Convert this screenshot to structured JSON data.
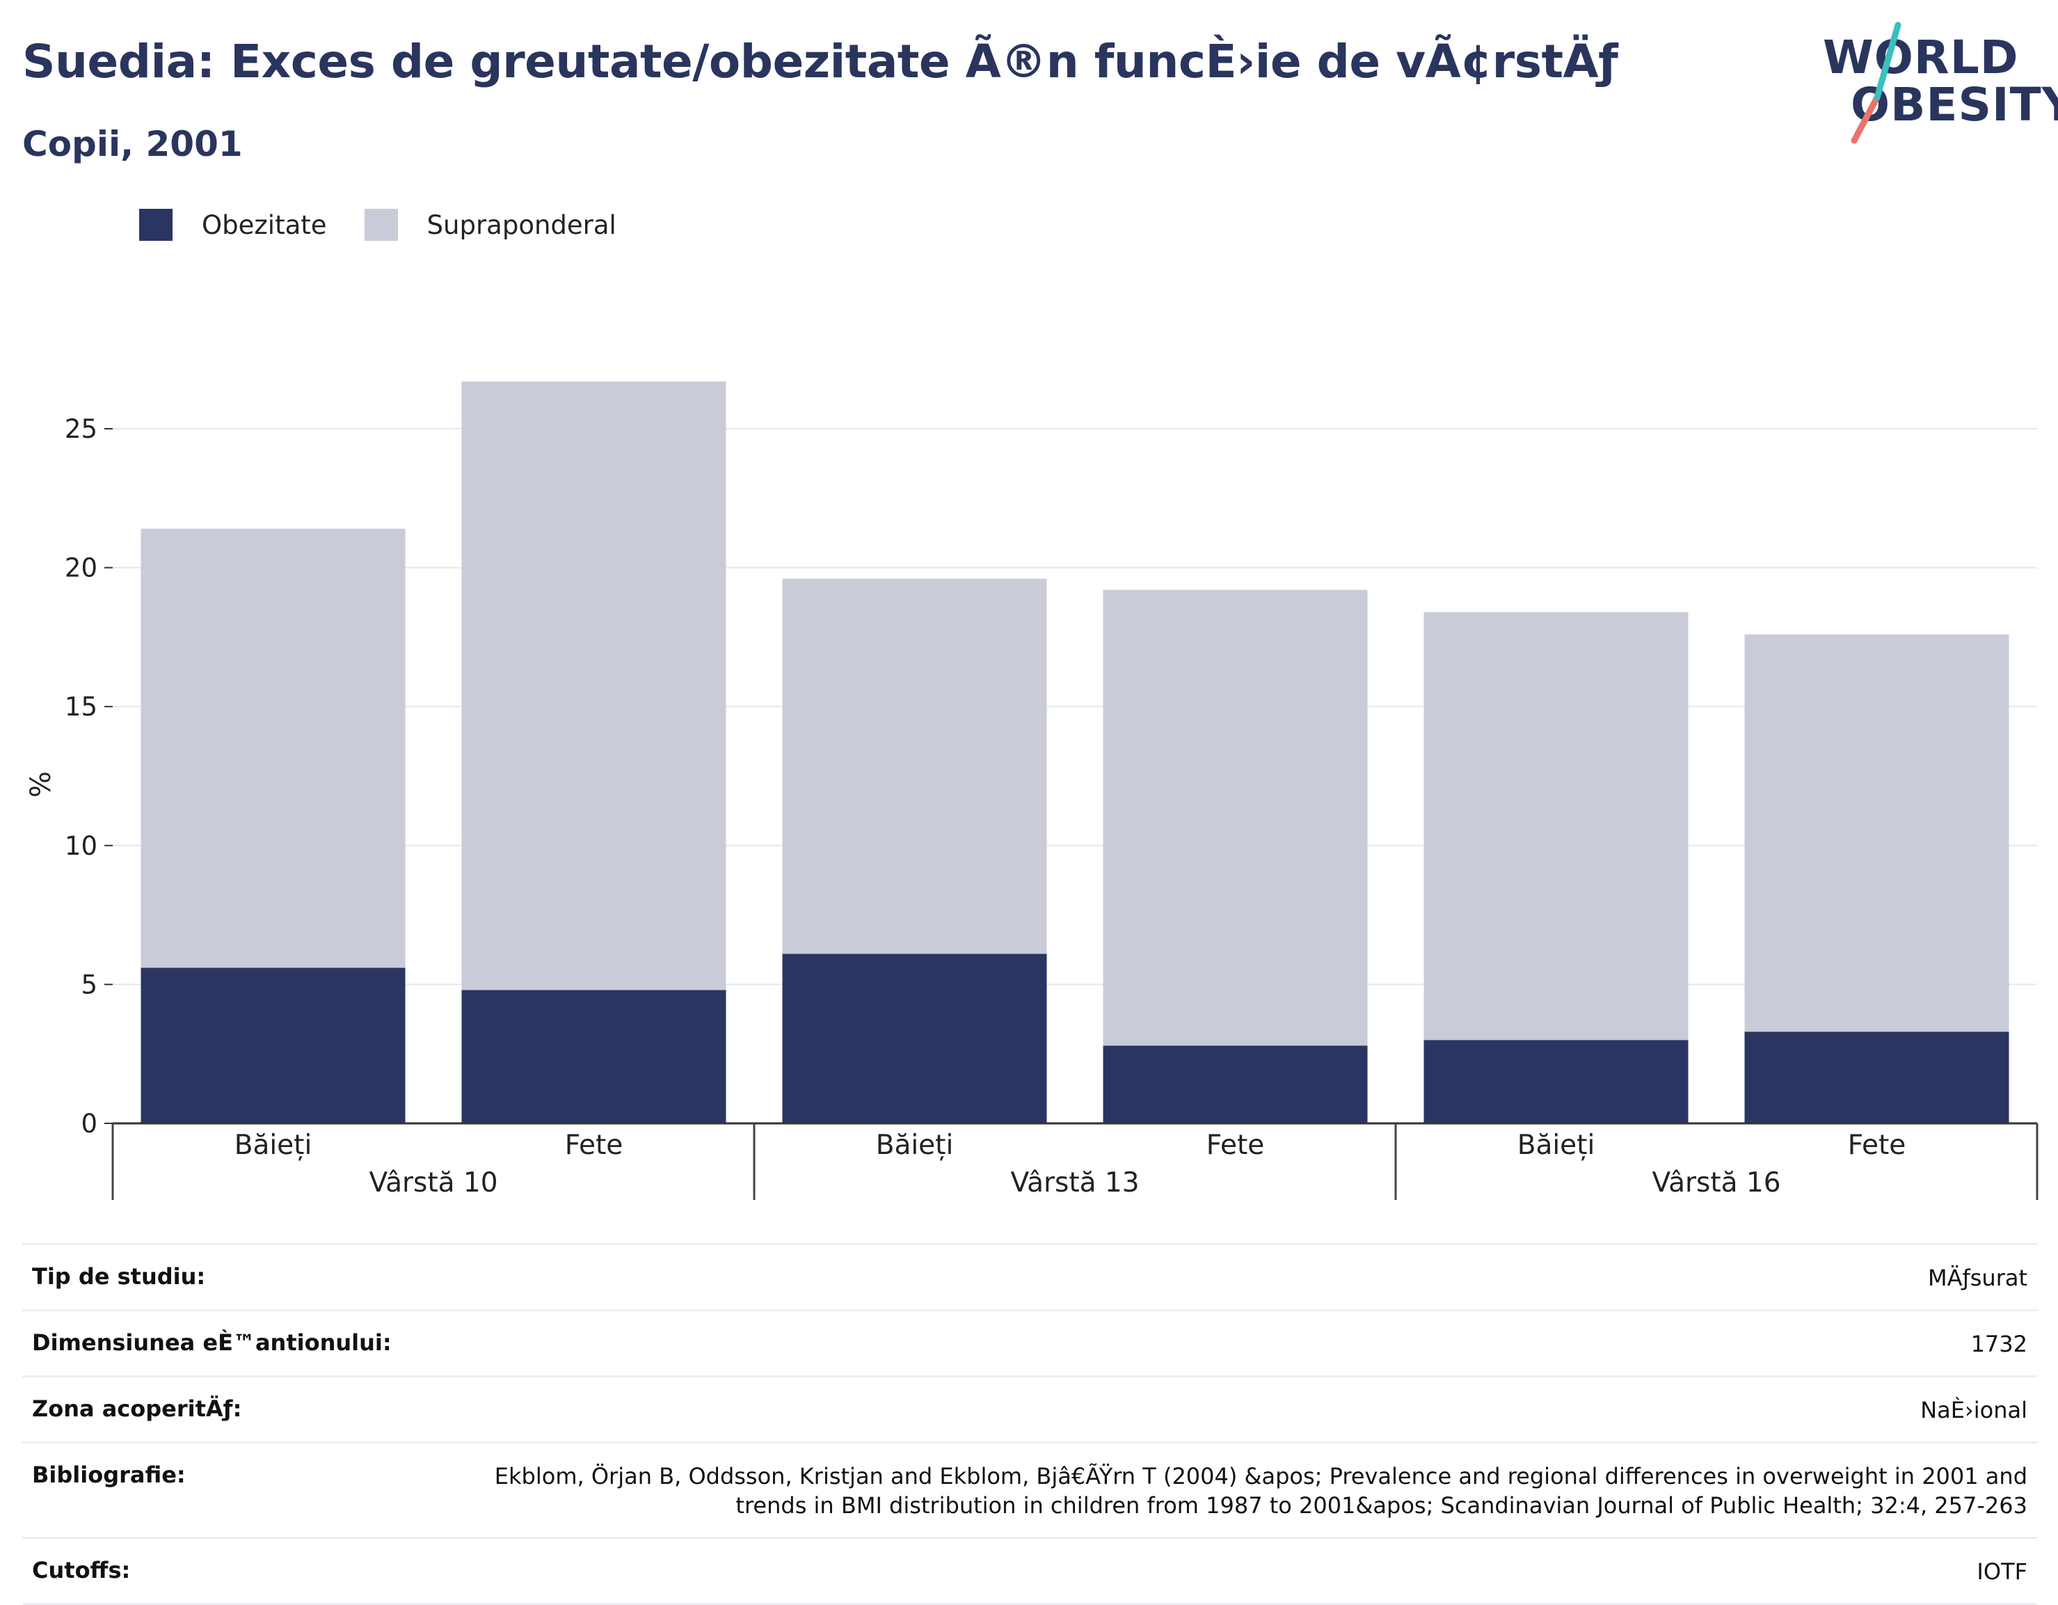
{
  "header": {
    "title": "Suedia: Exces de greutate/obezitate Ã®n funcÈ›ie de vÃ¢rstÄƒ",
    "subtitle": "Copii, 2001"
  },
  "logo": {
    "line1": "WORLD",
    "line2": "OBESITY",
    "icon": "world-obesity-logo"
  },
  "colors": {
    "obezitate": "#2a3563",
    "supraponderal": "#c9ccd8",
    "text": "#2a355e",
    "accent_teal": "#3bbfbf",
    "accent_coral": "#e9756a"
  },
  "legend": {
    "obezitate": "Obezitate",
    "supraponderal": "Supraponderal"
  },
  "chart_data": {
    "type": "bar",
    "stacked": true,
    "ylabel": "%",
    "ylim": [
      0,
      27
    ],
    "yticks": [
      0,
      5,
      10,
      15,
      20,
      25
    ],
    "grid": true,
    "legend_position": "top-left",
    "groups": [
      {
        "label": "Vârstă 10",
        "categories": [
          "Băieți",
          "Fete"
        ]
      },
      {
        "label": "Vârstă 13",
        "categories": [
          "Băieți",
          "Fete"
        ]
      },
      {
        "label": "Vârstă 16",
        "categories": [
          "Băieți",
          "Fete"
        ]
      }
    ],
    "series": [
      {
        "name": "Obezitate",
        "values": [
          5.6,
          4.8,
          6.1,
          2.8,
          3.0,
          3.3
        ]
      },
      {
        "name": "Supraponderal",
        "values": [
          15.8,
          21.9,
          13.5,
          16.4,
          15.4,
          14.3
        ]
      }
    ]
  },
  "info_table": [
    {
      "label": "Tip de studiu:",
      "value": "MÄƒsurat"
    },
    {
      "label": "Dimensiunea eÈ™antionului:",
      "value": "1732"
    },
    {
      "label": "Zona acoperitÄƒ:",
      "value": "NaÈ›ional"
    },
    {
      "label": "Bibliografie:",
      "value": "Ekblom, Örjan B, Oddsson, Kristjan and Ekblom, Bjâ€ÃŸrn T (2004) &apos; Prevalence and regional differences in overweight in 2001 and trends in BMI distribution in children from 1987 to 2001&apos; Scandinavian Journal of Public Health; 32:4, 257-263"
    },
    {
      "label": "Cutoffs:",
      "value": "IOTF"
    }
  ]
}
